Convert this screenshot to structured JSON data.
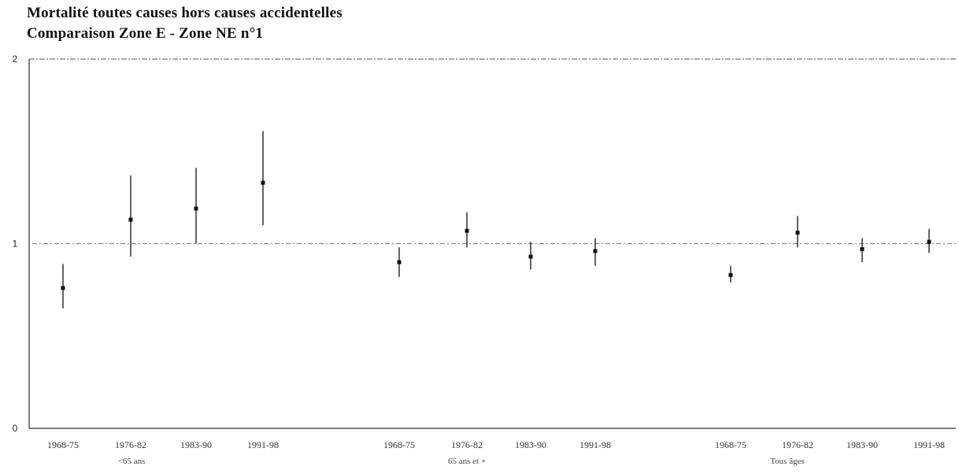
{
  "chart_data": {
    "type": "scatter",
    "title": "Mortalité toutes causes hors causes accidentelles",
    "subtitle": "Comparaison Zone E - Zone NE n°1",
    "ylim": [
      0,
      2
    ],
    "yticks": [
      "0",
      "1",
      "2"
    ],
    "reference_line": 1,
    "grid": false,
    "groups": [
      {
        "label": "<65 ans",
        "points": [
          {
            "period": "1968-75",
            "value": 0.76,
            "low": 0.65,
            "high": 0.89
          },
          {
            "period": "1976-82",
            "value": 1.13,
            "low": 0.93,
            "high": 1.37
          },
          {
            "period": "1983-90",
            "value": 1.19,
            "low": 1.0,
            "high": 1.41
          },
          {
            "period": "1991-98",
            "value": 1.33,
            "low": 1.1,
            "high": 1.61
          }
        ]
      },
      {
        "label": "65 ans et +",
        "points": [
          {
            "period": "1968-75",
            "value": 0.9,
            "low": 0.82,
            "high": 0.98
          },
          {
            "period": "1976-82",
            "value": 1.07,
            "low": 0.98,
            "high": 1.17
          },
          {
            "period": "1983-90",
            "value": 0.93,
            "low": 0.86,
            "high": 1.01
          },
          {
            "period": "1991-98",
            "value": 0.96,
            "low": 0.88,
            "high": 1.03
          }
        ]
      },
      {
        "label": "Tous âges",
        "points": [
          {
            "period": "1968-75",
            "value": 0.83,
            "low": 0.79,
            "high": 0.88
          },
          {
            "period": "1976-82",
            "value": 1.06,
            "low": 0.98,
            "high": 1.15
          },
          {
            "period": "1983-90",
            "value": 0.97,
            "low": 0.9,
            "high": 1.03
          },
          {
            "period": "1991-98",
            "value": 1.01,
            "low": 0.95,
            "high": 1.08
          }
        ]
      }
    ]
  }
}
